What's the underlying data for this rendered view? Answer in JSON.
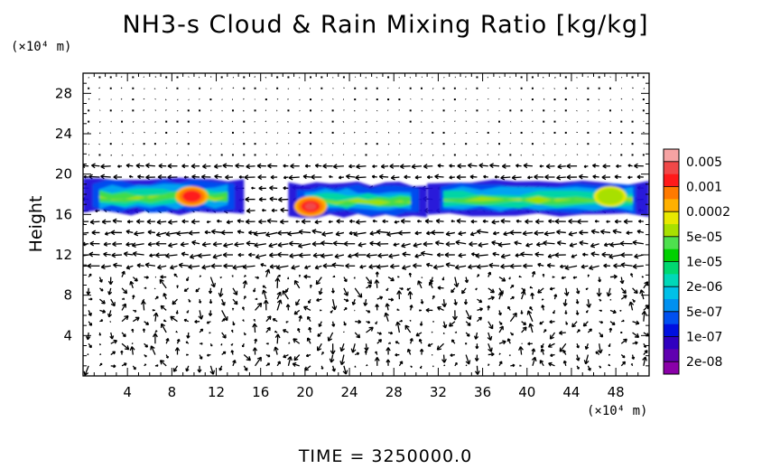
{
  "chart_data": {
    "type": "heatmap",
    "title": "NH3-s Cloud & Rain Mixing Ratio [kg/kg]",
    "ylabel": "Height",
    "y_unit": "(×10⁴ m)",
    "x_unit": "(×10⁴ m)",
    "time_label": "TIME = 3250000.0",
    "xlim": [
      0,
      51
    ],
    "ylim": [
      0,
      30
    ],
    "x_ticks": [
      4,
      8,
      12,
      16,
      20,
      24,
      28,
      32,
      36,
      40,
      44,
      48
    ],
    "y_ticks": [
      4,
      8,
      12,
      16,
      20,
      24,
      28
    ],
    "colorbar": {
      "labels": [
        "0.005",
        "0.001",
        "0.0002",
        "5e-05",
        "1e-05",
        "2e-06",
        "5e-07",
        "1e-07",
        "2e-08"
      ],
      "colors": [
        "#f6a3a3",
        "#f04848",
        "#ff1a1a",
        "#ff7a00",
        "#ffb000",
        "#e8e800",
        "#a8e000",
        "#4ee04e",
        "#00d000",
        "#00d870",
        "#00d8b8",
        "#00c0e8",
        "#0090f0",
        "#0050f0",
        "#0010e0",
        "#3000c0",
        "#6000b0",
        "#8a00a8"
      ]
    },
    "cloud_layers": [
      {
        "x_range": [
          0,
          14.5
        ],
        "y_range": [
          16.2,
          19.5
        ],
        "peak_level": "0.001",
        "peak_x": 9.8,
        "peak_y": 17.8
      },
      {
        "x_range": [
          18.5,
          31
        ],
        "y_range": [
          15.9,
          19.0
        ],
        "peak_level": "0.005",
        "peak_x": 20.5,
        "peak_y": 16.8
      },
      {
        "x_range": [
          31,
          51
        ],
        "y_range": [
          16.0,
          19.2
        ],
        "peak_level": "5e-05",
        "peak_x": 47.5,
        "peak_y": 17.8
      }
    ],
    "wind_vectors": "shown",
    "grid": false
  }
}
